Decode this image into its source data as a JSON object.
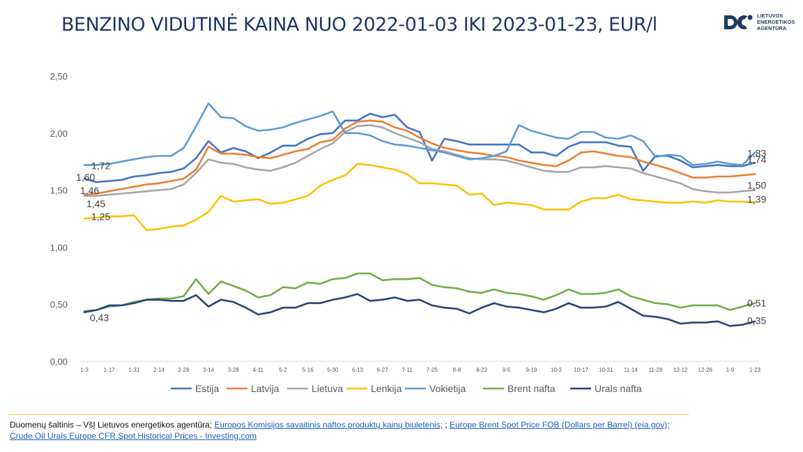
{
  "title": "BENZINO VIDUTINĖ KAINA NUO 2022-01-03 IKI 2023-01-23, EUR/l",
  "logo": {
    "line1": "LIETUVOS",
    "line2": "ENERGETIKOS",
    "line3": "AGENTŪRA"
  },
  "colors": {
    "Estija": "#4472c4",
    "Latvija": "#ed7d31",
    "Lietuva": "#a5a5a5",
    "Lenkija": "#ffc000",
    "Vokietija": "#5b9bd5",
    "Brent nafta": "#70ad47",
    "Urals nafta": "#264478"
  },
  "source": {
    "prefix": "Duomenų šaltinis – VšĮ Lietuvos energetikos agentūra; ",
    "link1": "Europos Komisijos savaitinis naftos produktų kainų biuletenis;",
    "sep1": " ; ",
    "link2": "Europe Brent Spot Price FOB (Dollars per Barrel) (eia.gov);",
    "sep2": " ",
    "link3": "Crude Oil Urals Europe CFR Spot Historical Prices - Investing.com"
  },
  "chart_data": {
    "type": "line",
    "title": "BENZINO VIDUTINĖ KAINA NUO 2022-01-03 IKI 2023-01-23, EUR/l",
    "xlabel": "",
    "ylabel": "",
    "ylim": [
      0,
      2.5
    ],
    "yticks": [
      "0,00",
      "0,50",
      "1,00",
      "1,50",
      "2,00",
      "2,50"
    ],
    "grid": false,
    "legend": "bottom",
    "x_tick_labels": [
      "1-3",
      "1-17",
      "1-31",
      "2-14",
      "2-28",
      "3-14",
      "3-28",
      "4-11",
      "5-2",
      "5-16",
      "5-30",
      "6-13",
      "6-27",
      "7-11",
      "7-25",
      "8-8",
      "8-22",
      "9-5",
      "9-19",
      "10-3",
      "10-17",
      "10-31",
      "11-14",
      "11-28",
      "12-12",
      "12-26",
      "1-9",
      "1-23"
    ],
    "series": [
      {
        "name": "Estija",
        "values": [
          1.6,
          1.57,
          1.58,
          1.59,
          1.62,
          1.63,
          1.65,
          1.66,
          1.69,
          1.78,
          1.93,
          1.83,
          1.87,
          1.84,
          1.78,
          1.83,
          1.89,
          1.89,
          1.95,
          1.99,
          2.0,
          2.11,
          2.11,
          2.17,
          2.14,
          2.16,
          2.05,
          2.01,
          1.76,
          1.95,
          1.93,
          1.9,
          1.9,
          1.9,
          1.9,
          1.9,
          1.83,
          1.83,
          1.8,
          1.88,
          1.92,
          1.92,
          1.92,
          1.89,
          1.88,
          1.67,
          1.8,
          1.8,
          1.76,
          1.7,
          1.71,
          1.72,
          1.71,
          1.71,
          1.74
        ],
        "labels": {
          "start": "1,60",
          "end": "1,74"
        }
      },
      {
        "name": "Latvija",
        "values": [
          1.46,
          1.47,
          1.49,
          1.51,
          1.53,
          1.55,
          1.56,
          1.58,
          1.6,
          1.68,
          1.88,
          1.82,
          1.82,
          1.81,
          1.79,
          1.78,
          1.81,
          1.84,
          1.86,
          1.92,
          1.94,
          2.04,
          2.1,
          2.11,
          2.1,
          2.05,
          2.02,
          1.96,
          1.91,
          1.87,
          1.85,
          1.83,
          1.82,
          1.8,
          1.79,
          1.76,
          1.74,
          1.72,
          1.71,
          1.76,
          1.83,
          1.84,
          1.82,
          1.8,
          1.79,
          1.75,
          1.72,
          1.69,
          1.65,
          1.61,
          1.61,
          1.62,
          1.62,
          1.63,
          1.64
        ],
        "labels": {
          "start": "1,46",
          "end": ""
        }
      },
      {
        "name": "Lietuva",
        "values": [
          1.45,
          1.45,
          1.46,
          1.47,
          1.48,
          1.49,
          1.5,
          1.51,
          1.55,
          1.65,
          1.77,
          1.74,
          1.73,
          1.7,
          1.68,
          1.67,
          1.7,
          1.74,
          1.8,
          1.86,
          1.91,
          2.01,
          2.06,
          2.07,
          2.05,
          2.0,
          1.96,
          1.92,
          1.86,
          1.84,
          1.81,
          1.78,
          1.77,
          1.77,
          1.76,
          1.73,
          1.7,
          1.67,
          1.66,
          1.66,
          1.7,
          1.7,
          1.71,
          1.7,
          1.69,
          1.65,
          1.62,
          1.59,
          1.56,
          1.51,
          1.49,
          1.48,
          1.48,
          1.49,
          1.5
        ],
        "labels": {
          "start": "1,45",
          "end": "1,50"
        }
      },
      {
        "name": "Lenkija",
        "values": [
          1.25,
          1.26,
          1.27,
          1.27,
          1.28,
          1.15,
          1.16,
          1.18,
          1.19,
          1.24,
          1.31,
          1.45,
          1.4,
          1.41,
          1.42,
          1.38,
          1.39,
          1.42,
          1.45,
          1.54,
          1.59,
          1.63,
          1.73,
          1.72,
          1.7,
          1.68,
          1.64,
          1.56,
          1.56,
          1.55,
          1.54,
          1.46,
          1.47,
          1.37,
          1.39,
          1.38,
          1.37,
          1.33,
          1.33,
          1.33,
          1.4,
          1.43,
          1.43,
          1.46,
          1.42,
          1.41,
          1.4,
          1.39,
          1.39,
          1.4,
          1.39,
          1.41,
          1.4,
          1.4,
          1.39
        ],
        "labels": {
          "start": "1,25",
          "end": "1,39"
        }
      },
      {
        "name": "Vokietija",
        "values": [
          1.72,
          1.72,
          1.73,
          1.75,
          1.77,
          1.79,
          1.8,
          1.8,
          1.87,
          2.06,
          2.26,
          2.14,
          2.13,
          2.06,
          2.02,
          2.03,
          2.05,
          2.09,
          2.12,
          2.15,
          2.19,
          2.0,
          2.0,
          1.98,
          1.93,
          1.9,
          1.89,
          1.87,
          1.85,
          1.83,
          1.8,
          1.77,
          1.78,
          1.8,
          1.84,
          2.07,
          2.02,
          1.99,
          1.96,
          1.95,
          2.01,
          2.01,
          1.96,
          1.95,
          1.98,
          1.93,
          1.79,
          1.81,
          1.8,
          1.72,
          1.73,
          1.75,
          1.73,
          1.72,
          1.83
        ],
        "labels": {
          "start": "1,72",
          "end": "1,83"
        }
      },
      {
        "name": "Brent nafta",
        "values": [
          0.44,
          0.45,
          0.48,
          0.49,
          0.52,
          0.54,
          0.55,
          0.55,
          0.57,
          0.72,
          0.59,
          0.7,
          0.66,
          0.62,
          0.56,
          0.58,
          0.65,
          0.64,
          0.69,
          0.68,
          0.72,
          0.73,
          0.77,
          0.77,
          0.71,
          0.72,
          0.72,
          0.73,
          0.67,
          0.65,
          0.64,
          0.61,
          0.6,
          0.63,
          0.6,
          0.59,
          0.57,
          0.54,
          0.58,
          0.63,
          0.59,
          0.59,
          0.6,
          0.63,
          0.57,
          0.54,
          0.51,
          0.5,
          0.47,
          0.49,
          0.49,
          0.49,
          0.45,
          0.48,
          0.51
        ],
        "labels": {
          "start": "",
          "end": "0,51"
        }
      },
      {
        "name": "Urals nafta",
        "values": [
          0.43,
          0.45,
          0.49,
          0.49,
          0.51,
          0.54,
          0.54,
          0.53,
          0.53,
          0.58,
          0.48,
          0.54,
          0.52,
          0.47,
          0.41,
          0.43,
          0.47,
          0.47,
          0.51,
          0.51,
          0.54,
          0.56,
          0.59,
          0.53,
          0.54,
          0.56,
          0.53,
          0.54,
          0.49,
          0.47,
          0.46,
          0.42,
          0.47,
          0.51,
          0.48,
          0.47,
          0.45,
          0.43,
          0.46,
          0.51,
          0.47,
          0.47,
          0.48,
          0.52,
          0.46,
          0.4,
          0.39,
          0.37,
          0.33,
          0.34,
          0.34,
          0.35,
          0.31,
          0.32,
          0.35
        ],
        "labels": {
          "start": "0,43",
          "end": "0,35"
        }
      }
    ]
  }
}
